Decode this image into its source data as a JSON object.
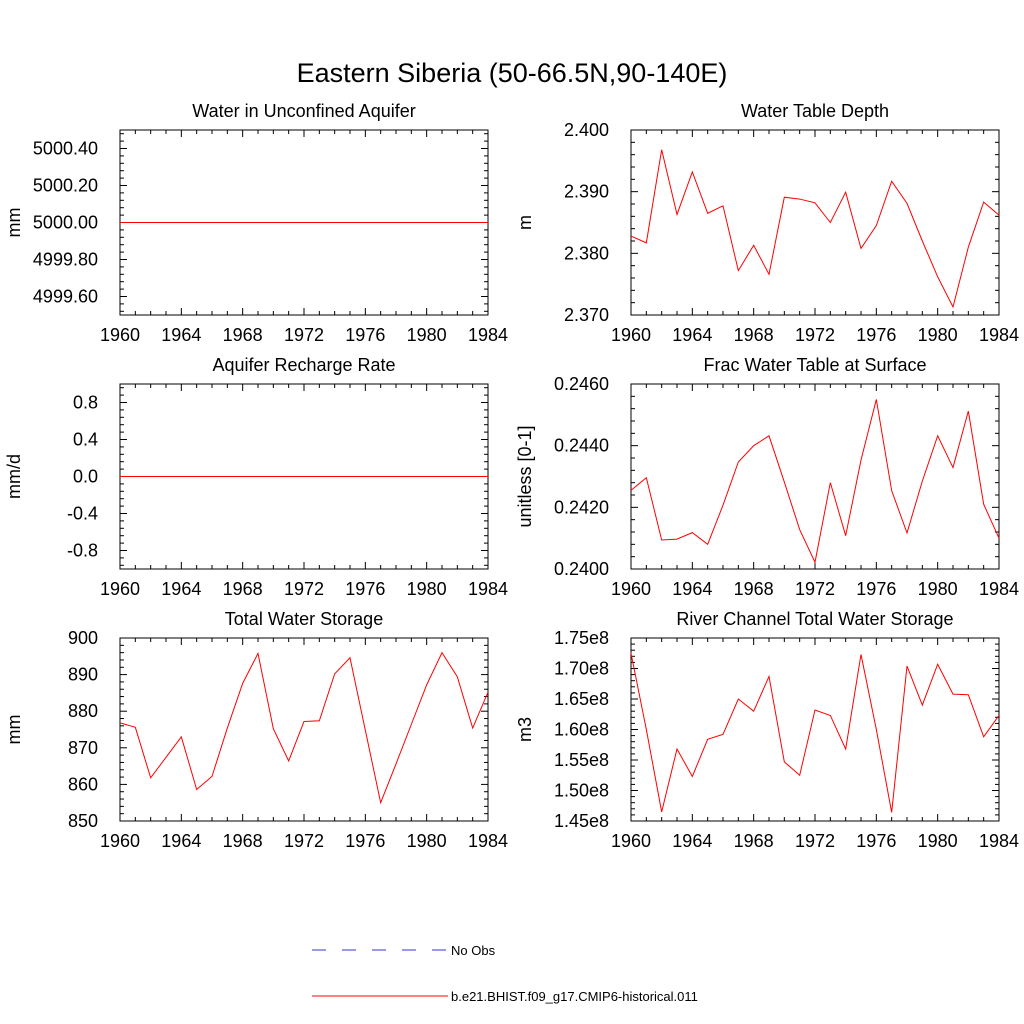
{
  "figure": {
    "title": "Eastern Siberia (50-66.5N,90-140E)"
  },
  "colors": {
    "model": "#ff0000",
    "obs": "#3333cc",
    "axis": "#000000"
  },
  "legend": {
    "entries": [
      {
        "label": "No Obs",
        "style": "dashed",
        "color": "#3333cc"
      },
      {
        "label": "b.e21.BHIST.f09_g17.CMIP6-historical.011",
        "style": "solid",
        "color": "#ff0000"
      }
    ]
  },
  "chart_data": [
    {
      "type": "line",
      "title": "Water in Unconfined Aquifer",
      "xlabel": "",
      "ylabel": "mm",
      "xlim": [
        1960,
        1984
      ],
      "ylim": [
        4999.5,
        5000.5
      ],
      "xticks": [
        1960,
        1964,
        1968,
        1972,
        1976,
        1980,
        1984
      ],
      "yticks": [
        4999.6,
        4999.8,
        5000.0,
        5000.2,
        5000.4
      ],
      "yticklabels": [
        "4999.60",
        "4999.80",
        "5000.00",
        "5000.20",
        "5000.40"
      ],
      "grid": false,
      "x": [
        1960,
        1961,
        1962,
        1963,
        1964,
        1965,
        1966,
        1967,
        1968,
        1969,
        1970,
        1971,
        1972,
        1973,
        1974,
        1975,
        1976,
        1977,
        1978,
        1979,
        1980,
        1981,
        1982,
        1983,
        1984
      ],
      "series": [
        {
          "name": "b.e21.BHIST.f09_g17.CMIP6-historical.011",
          "values": [
            5000,
            5000,
            5000,
            5000,
            5000,
            5000,
            5000,
            5000,
            5000,
            5000,
            5000,
            5000,
            5000,
            5000,
            5000,
            5000,
            5000,
            5000,
            5000,
            5000,
            5000,
            5000,
            5000,
            5000,
            5000
          ]
        }
      ]
    },
    {
      "type": "line",
      "title": "Water Table Depth",
      "xlabel": "",
      "ylabel": "m",
      "xlim": [
        1960,
        1984
      ],
      "ylim": [
        2.37,
        2.4
      ],
      "xticks": [
        1960,
        1964,
        1968,
        1972,
        1976,
        1980,
        1984
      ],
      "yticks": [
        2.37,
        2.38,
        2.39,
        2.4
      ],
      "yticklabels": [
        "2.370",
        "2.380",
        "2.390",
        "2.400"
      ],
      "grid": false,
      "x": [
        1960,
        1961,
        1962,
        1963,
        1964,
        1965,
        1966,
        1967,
        1968,
        1969,
        1970,
        1971,
        1972,
        1973,
        1974,
        1975,
        1976,
        1977,
        1978,
        1979,
        1980,
        1981,
        1982,
        1983,
        1984
      ],
      "series": [
        {
          "name": "b.e21.BHIST.f09_g17.CMIP6-historical.011",
          "values": [
            2.3828,
            2.3817,
            2.3968,
            2.3863,
            2.3932,
            2.3865,
            2.3877,
            2.3772,
            2.3813,
            2.3766,
            2.3891,
            2.3888,
            2.3882,
            2.385,
            2.3899,
            2.3808,
            2.3845,
            2.3917,
            2.3881,
            2.382,
            2.3762,
            2.3713,
            2.381,
            2.3883,
            2.3862
          ]
        }
      ]
    },
    {
      "type": "line",
      "title": "Aquifer Recharge Rate",
      "xlabel": "",
      "ylabel": "mm/d",
      "xlim": [
        1960,
        1984
      ],
      "ylim": [
        -1.0,
        1.0
      ],
      "xticks": [
        1960,
        1964,
        1968,
        1972,
        1976,
        1980,
        1984
      ],
      "yticks": [
        -0.8,
        -0.4,
        0.0,
        0.4,
        0.8
      ],
      "yticklabels": [
        "-0.8",
        "-0.4",
        "0.0",
        "0.4",
        "0.8"
      ],
      "grid": false,
      "x": [
        1960,
        1961,
        1962,
        1963,
        1964,
        1965,
        1966,
        1967,
        1968,
        1969,
        1970,
        1971,
        1972,
        1973,
        1974,
        1975,
        1976,
        1977,
        1978,
        1979,
        1980,
        1981,
        1982,
        1983,
        1984
      ],
      "series": [
        {
          "name": "b.e21.BHIST.f09_g17.CMIP6-historical.011",
          "values": [
            0,
            0,
            0,
            0,
            0,
            0,
            0,
            0,
            0,
            0,
            0,
            0,
            0,
            0,
            0,
            0,
            0,
            0,
            0,
            0,
            0,
            0,
            0,
            0,
            0
          ]
        }
      ]
    },
    {
      "type": "line",
      "title": "Frac Water Table at Surface",
      "xlabel": "",
      "ylabel": "unitless [0-1]",
      "xlim": [
        1960,
        1984
      ],
      "ylim": [
        0.24,
        0.246
      ],
      "xticks": [
        1960,
        1964,
        1968,
        1972,
        1976,
        1980,
        1984
      ],
      "yticks": [
        0.24,
        0.242,
        0.244,
        0.246
      ],
      "yticklabels": [
        "0.2400",
        "0.2420",
        "0.2440",
        "0.2460"
      ],
      "grid": false,
      "x": [
        1960,
        1961,
        1962,
        1963,
        1964,
        1965,
        1966,
        1967,
        1968,
        1969,
        1970,
        1971,
        1972,
        1973,
        1974,
        1975,
        1976,
        1977,
        1978,
        1979,
        1980,
        1981,
        1982,
        1983,
        1984
      ],
      "series": [
        {
          "name": "b.e21.BHIST.f09_g17.CMIP6-historical.011",
          "values": [
            0.24255,
            0.24296,
            0.24094,
            0.24097,
            0.24118,
            0.2408,
            0.24207,
            0.24347,
            0.244,
            0.24432,
            0.24282,
            0.24128,
            0.24022,
            0.2428,
            0.24108,
            0.24353,
            0.2455,
            0.24254,
            0.24117,
            0.24285,
            0.24432,
            0.24329,
            0.24512,
            0.2421,
            0.241
          ]
        }
      ]
    },
    {
      "type": "line",
      "title": "Total Water Storage",
      "xlabel": "",
      "ylabel": "mm",
      "xlim": [
        1960,
        1984
      ],
      "ylim": [
        850,
        900
      ],
      "xticks": [
        1960,
        1964,
        1968,
        1972,
        1976,
        1980,
        1984
      ],
      "yticks": [
        850,
        860,
        870,
        880,
        890,
        900
      ],
      "yticklabels": [
        "850",
        "860",
        "870",
        "880",
        "890",
        "900"
      ],
      "grid": false,
      "x": [
        1960,
        1961,
        1962,
        1963,
        1964,
        1965,
        1966,
        1967,
        1968,
        1969,
        1970,
        1971,
        1972,
        1973,
        1974,
        1975,
        1976,
        1977,
        1978,
        1979,
        1980,
        1981,
        1982,
        1983,
        1984
      ],
      "series": [
        {
          "name": "b.e21.BHIST.f09_g17.CMIP6-historical.011",
          "values": [
            876.8,
            875.6,
            861.8,
            867.4,
            873.0,
            858.6,
            862.2,
            875.4,
            887.6,
            895.8,
            875.2,
            866.4,
            877.2,
            877.4,
            890.2,
            894.6,
            874.8,
            855.0,
            865.6,
            876.4,
            887.2,
            896.0,
            889.4,
            875.4,
            885.2
          ]
        }
      ]
    },
    {
      "type": "line",
      "title": "River Channel Total Water Storage",
      "xlabel": "",
      "ylabel": "m3",
      "xlim": [
        1960,
        1984
      ],
      "ylim": [
        145000000.0,
        175000000.0
      ],
      "xticks": [
        1960,
        1964,
        1968,
        1972,
        1976,
        1980,
        1984
      ],
      "yticks": [
        145000000.0,
        150000000.0,
        155000000.0,
        160000000.0,
        165000000.0,
        170000000.0,
        175000000.0
      ],
      "yticklabels": [
        "1.45e8",
        "1.50e8",
        "1.55e8",
        "1.60e8",
        "1.65e8",
        "1.70e8",
        "1.75e8"
      ],
      "grid": false,
      "x": [
        1960,
        1961,
        1962,
        1963,
        1964,
        1965,
        1966,
        1967,
        1968,
        1969,
        1970,
        1971,
        1972,
        1973,
        1974,
        1975,
        1976,
        1977,
        1978,
        1979,
        1980,
        1981,
        1982,
        1983,
        1984
      ],
      "series": [
        {
          "name": "b.e21.BHIST.f09_g17.CMIP6-historical.011",
          "values": [
            172500000.0,
            160000000.0,
            146500000.0,
            156800000.0,
            152300000.0,
            158400000.0,
            159200000.0,
            165000000.0,
            163000000.0,
            168700000.0,
            154700000.0,
            152500000.0,
            163200000.0,
            162300000.0,
            156800000.0,
            172300000.0,
            160000000.0,
            146400000.0,
            170400000.0,
            164000000.0,
            170700000.0,
            165800000.0,
            165700000.0,
            158800000.0,
            162300000.0
          ]
        }
      ]
    }
  ]
}
